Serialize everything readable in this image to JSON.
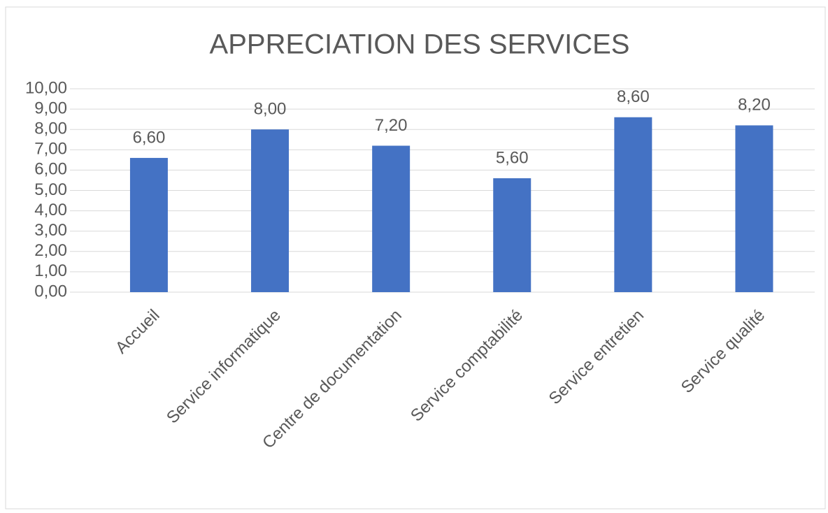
{
  "chart_data": {
    "type": "bar",
    "title": "APPRECIATION DES SERVICES",
    "categories": [
      "Accueil",
      "Service informatique",
      "Centre de documentation",
      "Service comptabilité",
      "Service entretien",
      "Service qualité"
    ],
    "values": [
      6.6,
      8.0,
      7.2,
      5.6,
      8.6,
      8.2
    ],
    "value_labels": [
      "6,60",
      "8,00",
      "7,20",
      "5,60",
      "8,60",
      "8,20"
    ],
    "color": "#4472c4",
    "ylim": [
      0,
      10
    ],
    "yticks": [
      {
        "value": 0,
        "label": "0,00"
      },
      {
        "value": 1,
        "label": "1,00"
      },
      {
        "value": 2,
        "label": "2,00"
      },
      {
        "value": 3,
        "label": "3,00"
      },
      {
        "value": 4,
        "label": "4,00"
      },
      {
        "value": 5,
        "label": "5,00"
      },
      {
        "value": 6,
        "label": "6,00"
      },
      {
        "value": 7,
        "label": "7,00"
      },
      {
        "value": 8,
        "label": "8,00"
      },
      {
        "value": 9,
        "label": "9,00"
      },
      {
        "value": 10,
        "label": "10,00"
      }
    ],
    "grid": true
  }
}
